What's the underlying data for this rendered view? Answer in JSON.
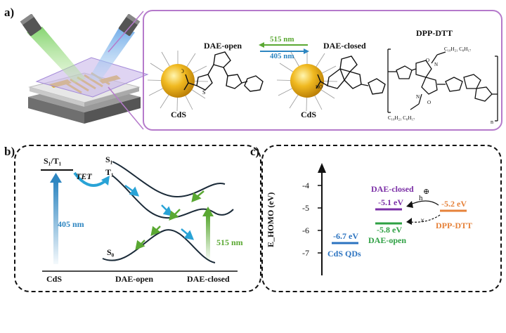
{
  "panel_a": {
    "label": "a)",
    "dae_open": "DAE-open",
    "dae_closed": "DAE-closed",
    "dpp_dtt": "DPP-DTT",
    "cds_left": "CdS",
    "cds_right": "CdS",
    "arrow_green_label": "515 nm",
    "arrow_blue_label": "405 nm",
    "chain_top": "C₁₀H₂₁  C₈H₁₇",
    "chain_bottom": "C₁₀H₂₁  C₈H₁₇",
    "n": "n",
    "o_top": "O",
    "o_bottom": "O",
    "n_top": "N",
    "n_bottom": "N",
    "s_label": "S",
    "ho_label": "HO",
    "o_label": "O"
  },
  "panel_b": {
    "label": "b)",
    "s1t1_left": "S₁/T₁",
    "tet": "TET",
    "s1": "S₁",
    "t1": "T₁",
    "s0": "S₀",
    "nm405": "405 nm",
    "nm515": "515 nm",
    "axis_cds": "CdS",
    "axis_dae_open": "DAE-open",
    "axis_dae_closed": "DAE-closed"
  },
  "panel_c": {
    "label": "c)",
    "ylabel": "E_HOMO (eV)",
    "ticks": [
      "-4",
      "-5",
      "-6",
      "-7"
    ],
    "levels": [
      {
        "value": "-5.1 eV",
        "name": "DAE-closed",
        "color": "#7b2fa6"
      },
      {
        "value": "-5.2 eV",
        "name": "DPP-DTT",
        "color": "#e6823a"
      },
      {
        "value": "-5.8 eV",
        "name": "DAE-open",
        "color": "#2ea043"
      },
      {
        "value": "-6.7 eV",
        "name": "CdS QDs",
        "color": "#2b73c0"
      }
    ],
    "h_label": "h",
    "plus_symbol": "⊕",
    "cross_symbol": "×"
  },
  "colors": {
    "green": "#5aa832",
    "blue": "#2e86c1",
    "cyan": "#29a3d6",
    "purple_frame": "#b57acb"
  }
}
